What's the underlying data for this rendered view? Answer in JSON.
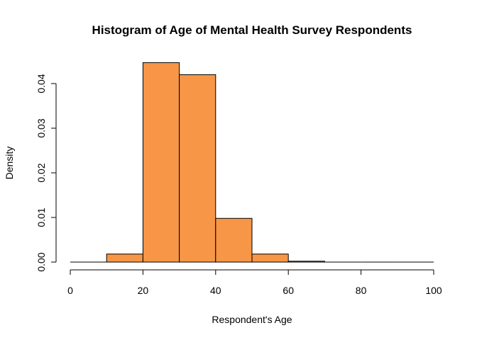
{
  "chart_data": {
    "type": "bar",
    "title": "Histogram of Age of Mental Health Survey Respondents",
    "xlabel": "Respondent's Age",
    "ylabel": "Density",
    "xlim": [
      0,
      100
    ],
    "ylim": [
      0,
      0.045
    ],
    "x_ticks": [
      0,
      20,
      40,
      60,
      80,
      100
    ],
    "y_ticks": [
      0.0,
      0.01,
      0.02,
      0.03,
      0.04
    ],
    "y_tick_labels": [
      "0.00",
      "0.01",
      "0.02",
      "0.03",
      "0.04"
    ],
    "bin_width": 10,
    "bins": [
      {
        "start": 0,
        "end": 10,
        "value": 0.0
      },
      {
        "start": 10,
        "end": 20,
        "value": 0.0018
      },
      {
        "start": 20,
        "end": 30,
        "value": 0.0447
      },
      {
        "start": 30,
        "end": 40,
        "value": 0.042
      },
      {
        "start": 40,
        "end": 50,
        "value": 0.0098
      },
      {
        "start": 50,
        "end": 60,
        "value": 0.0018
      },
      {
        "start": 60,
        "end": 70,
        "value": 0.0002
      },
      {
        "start": 70,
        "end": 80,
        "value": 0.0
      },
      {
        "start": 80,
        "end": 90,
        "value": 0.0
      },
      {
        "start": 90,
        "end": 100,
        "value": 0.0
      }
    ],
    "bar_color": "#f79646",
    "grid": false
  }
}
